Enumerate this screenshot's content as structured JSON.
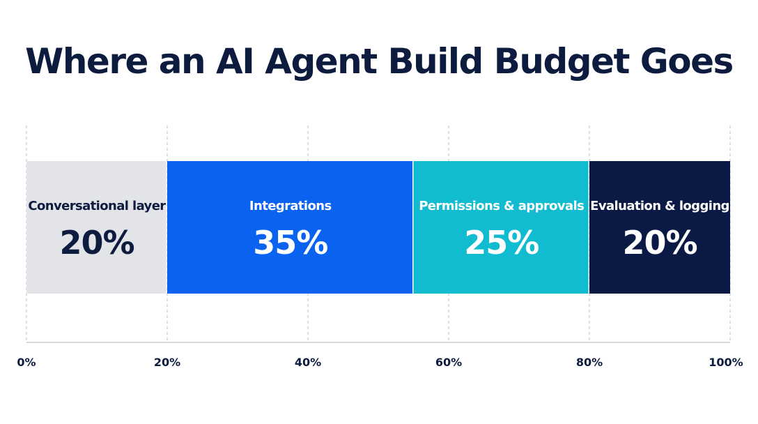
{
  "chart_data": {
    "type": "bar",
    "orientation": "horizontal",
    "stacked": true,
    "title": "Where an AI Agent Build Budget Goes",
    "xlim": [
      0,
      100
    ],
    "x_ticks": [
      "0%",
      "20%",
      "40%",
      "60%",
      "80%",
      "100%"
    ],
    "x_tick_values": [
      0,
      20,
      40,
      60,
      80,
      100
    ],
    "grid": true,
    "segments": [
      {
        "label": "Conversational layer",
        "value": 20,
        "value_label": "20%",
        "color": "#e3e4e8",
        "text_color": "#0d1b3e"
      },
      {
        "label": "Integrations",
        "value": 35,
        "value_label": "35%",
        "color": "#0a63f0",
        "text_color": "#ffffff"
      },
      {
        "label": "Permissions & approvals",
        "value": 25,
        "value_label": "25%",
        "color": "#11bcd0",
        "text_color": "#ffffff"
      },
      {
        "label": "Evaluation & logging",
        "value": 20,
        "value_label": "20%",
        "color": "#0b1a45",
        "text_color": "#ffffff"
      }
    ]
  }
}
